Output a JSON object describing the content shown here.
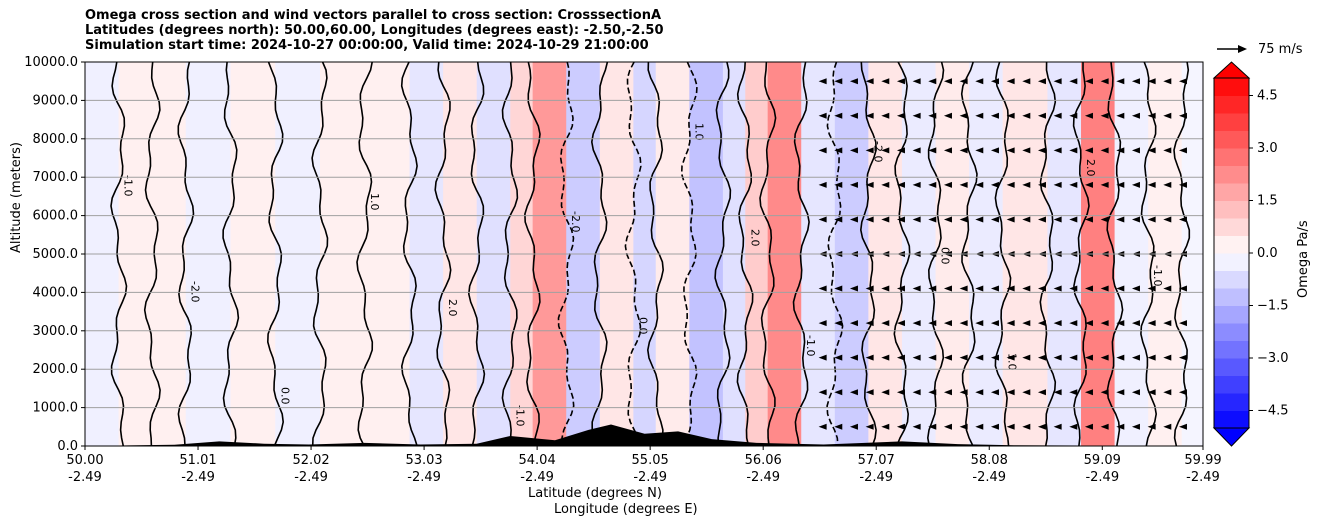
{
  "title": {
    "line1": "Omega cross section and wind vectors parallel to cross section: CrosssectionA",
    "line2": "Latitudes (degrees north): 50.00,60.00, Longitudes (degrees east): -2.50,-2.50",
    "line3": "Simulation start time: 2024-10-27 00:00:00, Valid time: 2024-10-29 21:00:00"
  },
  "reference_vector_label": "75 m/s",
  "colorbar": {
    "label": "Omega Pa/s",
    "ticks": [
      "4.5",
      "3.0",
      "1.5",
      "0.0",
      "−1.5",
      "−3.0",
      "−4.5"
    ],
    "tick_values": [
      4.5,
      3.0,
      1.5,
      0.0,
      -1.5,
      -3.0,
      -4.5
    ],
    "range": [
      -5.0,
      5.0
    ],
    "extend": "both"
  },
  "chart_data": {
    "type": "heatmap",
    "xlabel_lat": "Latitude (degrees N)",
    "xlabel_lon": "Longitude (degrees E)",
    "ylabel": "Altitude (meters)",
    "x_range": [
      50.0,
      59.99
    ],
    "ylim": [
      0,
      10000
    ],
    "grid": "horizontal",
    "x_ticks": [
      {
        "lat": "50.00",
        "lon": "-2.49",
        "value": 50.0
      },
      {
        "lat": "51.01",
        "lon": "-2.49",
        "value": 51.01
      },
      {
        "lat": "52.02",
        "lon": "-2.49",
        "value": 52.02
      },
      {
        "lat": "53.03",
        "lon": "-2.49",
        "value": 53.03
      },
      {
        "lat": "54.04",
        "lon": "-2.49",
        "value": 54.04
      },
      {
        "lat": "55.05",
        "lon": "-2.49",
        "value": 55.05
      },
      {
        "lat": "56.06",
        "lon": "-2.49",
        "value": 56.06
      },
      {
        "lat": "57.07",
        "lon": "-2.49",
        "value": 57.07
      },
      {
        "lat": "58.08",
        "lon": "-2.49",
        "value": 58.08
      },
      {
        "lat": "59.09",
        "lon": "-2.49",
        "value": 59.09
      },
      {
        "lat": "59.99",
        "lon": "-2.49",
        "value": 59.99
      }
    ],
    "y_ticks": [
      "0.0",
      "1000.0",
      "2000.0",
      "3000.0",
      "4000.0",
      "5000.0",
      "6000.0",
      "7000.0",
      "8000.0",
      "9000.0",
      "10000.0"
    ],
    "y_tick_values": [
      0,
      1000,
      2000,
      3000,
      4000,
      5000,
      6000,
      7000,
      8000,
      9000,
      10000
    ],
    "contour_levels": [
      -2.0,
      -1.0,
      0.0,
      1.0,
      2.0
    ],
    "bands": [
      {
        "lat": 50.0,
        "omega": -0.3
      },
      {
        "lat": 50.3,
        "omega": 0.3
      },
      {
        "lat": 50.6,
        "omega": 0.3
      },
      {
        "lat": 50.9,
        "omega": -0.3
      },
      {
        "lat": 51.3,
        "omega": 0.3
      },
      {
        "lat": 51.7,
        "omega": -0.3
      },
      {
        "lat": 52.1,
        "omega": 0.3
      },
      {
        "lat": 52.5,
        "omega": 0.3
      },
      {
        "lat": 52.9,
        "omega": -0.5
      },
      {
        "lat": 53.2,
        "omega": 0.5
      },
      {
        "lat": 53.5,
        "omega": -0.6
      },
      {
        "lat": 53.8,
        "omega": 0.8
      },
      {
        "lat": 54.0,
        "omega": 2.0
      },
      {
        "lat": 54.3,
        "omega": -1.0
      },
      {
        "lat": 54.6,
        "omega": 0.5
      },
      {
        "lat": 54.9,
        "omega": -0.8
      },
      {
        "lat": 55.1,
        "omega": 0.4
      },
      {
        "lat": 55.4,
        "omega": -1.2
      },
      {
        "lat": 55.7,
        "omega": -0.6
      },
      {
        "lat": 55.9,
        "omega": 1.0
      },
      {
        "lat": 56.1,
        "omega": 2.3
      },
      {
        "lat": 56.4,
        "omega": -0.5
      },
      {
        "lat": 56.7,
        "omega": -1.0
      },
      {
        "lat": 57.0,
        "omega": 0.5
      },
      {
        "lat": 57.3,
        "omega": -0.4
      },
      {
        "lat": 57.6,
        "omega": 0.4
      },
      {
        "lat": 57.9,
        "omega": -0.4
      },
      {
        "lat": 58.2,
        "omega": 0.5
      },
      {
        "lat": 58.6,
        "omega": -0.5
      },
      {
        "lat": 58.9,
        "omega": 2.5
      },
      {
        "lat": 59.2,
        "omega": -0.3
      },
      {
        "lat": 59.5,
        "omega": 0.3
      },
      {
        "lat": 59.8,
        "omega": -0.2
      }
    ],
    "contour_label_text": [
      "0.0",
      "-1.0",
      "1.0",
      "-2.0",
      "2.0"
    ],
    "terrain": [
      {
        "lat": 50.0,
        "alt": 0
      },
      {
        "lat": 50.8,
        "alt": 30
      },
      {
        "lat": 51.2,
        "alt": 120
      },
      {
        "lat": 51.6,
        "alt": 60
      },
      {
        "lat": 52.0,
        "alt": 40
      },
      {
        "lat": 52.5,
        "alt": 80
      },
      {
        "lat": 53.0,
        "alt": 40
      },
      {
        "lat": 53.5,
        "alt": 60
      },
      {
        "lat": 53.8,
        "alt": 260
      },
      {
        "lat": 54.2,
        "alt": 150
      },
      {
        "lat": 54.5,
        "alt": 420
      },
      {
        "lat": 54.7,
        "alt": 560
      },
      {
        "lat": 55.0,
        "alt": 320
      },
      {
        "lat": 55.3,
        "alt": 380
      },
      {
        "lat": 55.6,
        "alt": 180
      },
      {
        "lat": 56.0,
        "alt": 80
      },
      {
        "lat": 56.6,
        "alt": 40
      },
      {
        "lat": 57.3,
        "alt": 120
      },
      {
        "lat": 57.8,
        "alt": 50
      },
      {
        "lat": 58.3,
        "alt": 20
      },
      {
        "lat": 59.99,
        "alt": 0
      }
    ]
  }
}
